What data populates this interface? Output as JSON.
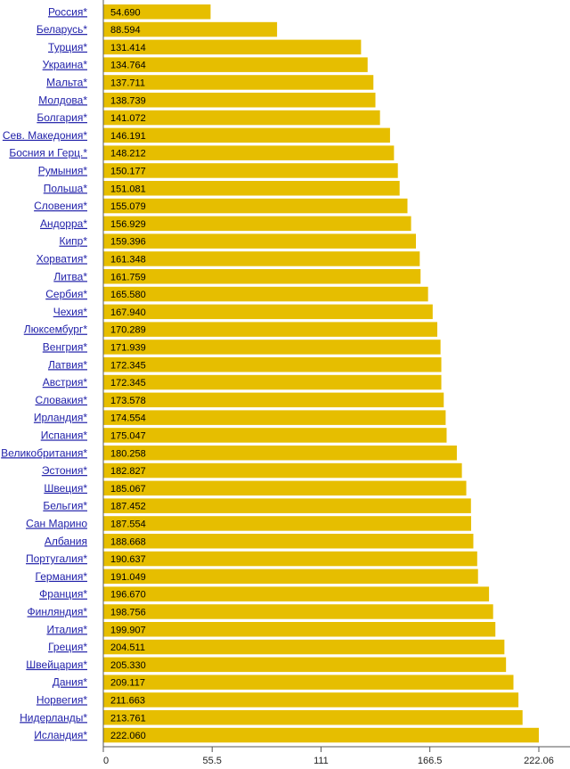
{
  "chart_data": {
    "type": "bar",
    "orientation": "horizontal",
    "categories": [
      "Россия*",
      "Беларусь*",
      "Турция*",
      "Украина*",
      "Мальта*",
      "Молдова*",
      "Болгария*",
      "Сев. Македония*",
      "Босния и Герц.*",
      "Румыния*",
      "Польша*",
      "Словения*",
      "Андорра*",
      "Кипр*",
      "Хорватия*",
      "Литва*",
      "Сербия*",
      "Чехия*",
      "Люксембург*",
      "Венгрия*",
      "Латвия*",
      "Австрия*",
      "Словакия*",
      "Ирландия*",
      "Испания*",
      "Великобритания*",
      "Эстония*",
      "Швеция*",
      "Бельгия*",
      "Сан Марино",
      "Албания",
      "Португалия*",
      "Германия*",
      "Франция*",
      "Финляндия*",
      "Италия*",
      "Греция*",
      "Швейцария*",
      "Дания*",
      "Норвегия*",
      "Нидерланды*",
      "Исландия*"
    ],
    "values": [
      54.69,
      88.594,
      131.414,
      134.764,
      137.711,
      138.739,
      141.072,
      146.191,
      148.212,
      150.177,
      151.081,
      155.079,
      156.929,
      159.396,
      161.348,
      161.759,
      165.58,
      167.94,
      170.289,
      171.939,
      172.345,
      172.345,
      173.578,
      174.554,
      175.047,
      180.258,
      182.827,
      185.067,
      187.452,
      187.554,
      188.668,
      190.637,
      191.049,
      196.67,
      198.756,
      199.907,
      204.511,
      205.33,
      209.117,
      211.663,
      213.761,
      222.06
    ],
    "value_labels": [
      "54.690",
      "88.594",
      "131.414",
      "134.764",
      "137.711",
      "138.739",
      "141.072",
      "146.191",
      "148.212",
      "150.177",
      "151.081",
      "155.079",
      "156.929",
      "159.396",
      "161.348",
      "161.759",
      "165.580",
      "167.940",
      "170.289",
      "171.939",
      "172.345",
      "172.345",
      "173.578",
      "174.554",
      "175.047",
      "180.258",
      "182.827",
      "185.067",
      "187.452",
      "187.554",
      "188.668",
      "190.637",
      "191.049",
      "196.670",
      "198.756",
      "199.907",
      "204.511",
      "205.330",
      "209.117",
      "211.663",
      "213.761",
      "222.060"
    ],
    "xlim": [
      0,
      222.06
    ],
    "xticks": [
      0,
      55.5,
      111,
      166.5,
      222.06
    ],
    "xtick_labels": [
      "0",
      "55.5",
      "111",
      "166.5",
      "222.06"
    ],
    "bar_color": "#e6be00",
    "label_color": "#2222aa",
    "grid": false,
    "title": "",
    "xlabel": "",
    "ylabel": ""
  }
}
